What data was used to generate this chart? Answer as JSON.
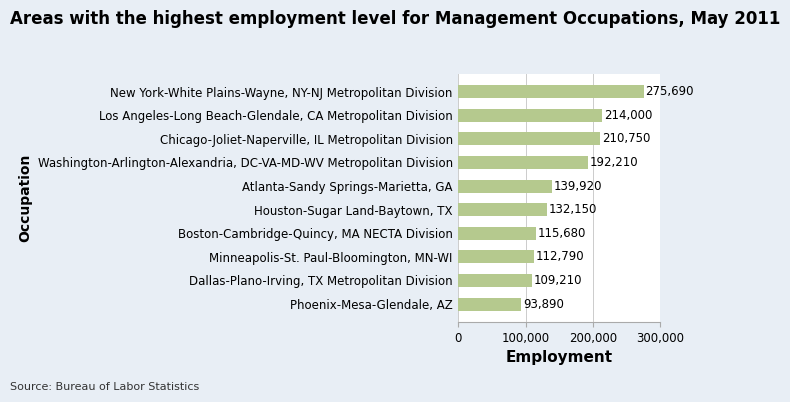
{
  "title": "Areas with the highest employment level for Management Occupations, May 2011",
  "categories": [
    "Phoenix-Mesa-Glendale, AZ",
    "Dallas-Plano-Irving, TX Metropolitan Division",
    "Minneapolis-St. Paul-Bloomington, MN-WI",
    "Boston-Cambridge-Quincy, MA NECTA Division",
    "Houston-Sugar Land-Baytown, TX",
    "Atlanta-Sandy Springs-Marietta, GA",
    "Washington-Arlington-Alexandria, DC-VA-MD-WV Metropolitan Division",
    "Chicago-Joliet-Naperville, IL Metropolitan Division",
    "Los Angeles-Long Beach-Glendale, CA Metropolitan Division",
    "New York-White Plains-Wayne, NY-NJ Metropolitan Division"
  ],
  "values": [
    93890,
    109210,
    112790,
    115680,
    132150,
    139920,
    192210,
    210750,
    214000,
    275690
  ],
  "bar_color": "#b5c98e",
  "xlabel": "Employment",
  "ylabel": "Occupation",
  "xlim": [
    0,
    300000
  ],
  "xticks": [
    0,
    100000,
    200000,
    300000
  ],
  "xtick_labels": [
    "0",
    "100,000",
    "200,000",
    "300,000"
  ],
  "source": "Source: Bureau of Labor Statistics",
  "title_fontsize": 12,
  "label_fontsize": 10,
  "tick_fontsize": 8.5,
  "value_fontsize": 8.5,
  "source_fontsize": 8,
  "fig_bg": "#e8eef5",
  "plot_bg": "#ffffff",
  "value_labels": [
    "93,890",
    "109,210",
    "112,790",
    "115,680",
    "132,150",
    "139,920",
    "192,210",
    "210,750",
    "214,000",
    "275,690"
  ]
}
